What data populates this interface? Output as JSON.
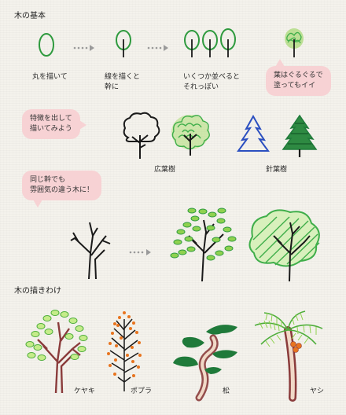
{
  "sections": {
    "basics_title": "木の基本",
    "drawing_title": "木の描きわけ"
  },
  "steps": [
    {
      "label": "丸を描いて"
    },
    {
      "label_line1": "線を描くと",
      "label_line2": "幹に"
    },
    {
      "label_line1": "いくつか並べると",
      "label_line2": "それっぽい"
    },
    {
      "label_line1": "葉はぐるぐるで",
      "label_line2": "塗ってもイイ"
    }
  ],
  "bubbles": {
    "features_line1": "特徴を出して",
    "features_line2": "描いてみよう",
    "same_trunk_line1": "同じ幹でも",
    "same_trunk_line2": "雰囲気の違う木に！"
  },
  "categories": {
    "broadleaf": "広葉樹",
    "conifer": "針葉樹"
  },
  "species": {
    "keyaki": "ケヤキ",
    "poplar": "ポプラ",
    "pine": "松",
    "palm": "ヤシ"
  },
  "colors": {
    "ink": "#1a1a1a",
    "leaf_green": "#3fae4a",
    "light_green": "#8fd14f",
    "conifer_blue": "#2b4fc0",
    "conifer_green": "#1f7a3a",
    "autumn_orange": "#e8741e",
    "trunk_brown": "#8a3b3b",
    "bubble_pink": "#f7d2d4",
    "arrow_gray": "#9a9a9a"
  }
}
